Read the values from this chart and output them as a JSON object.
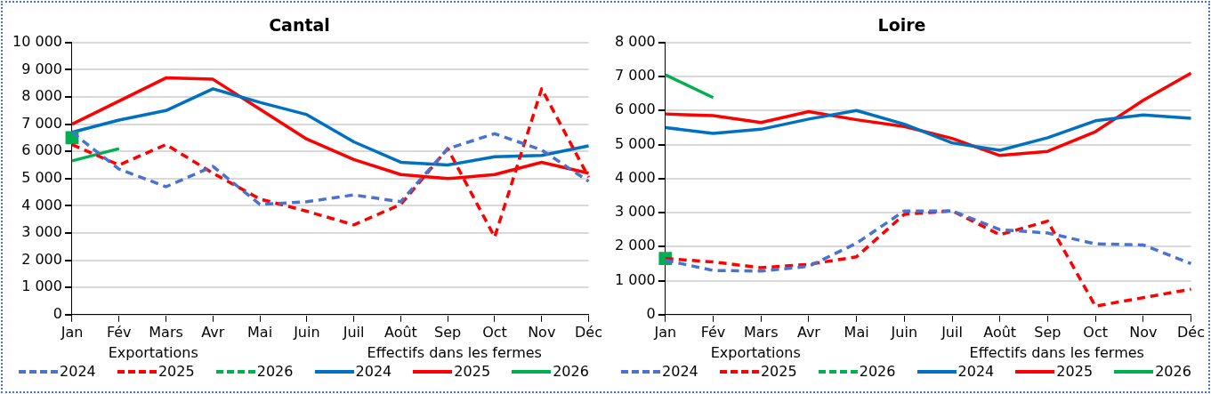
{
  "chart_data": [
    {
      "type": "line",
      "title": "Cantal",
      "categories": [
        "Jan",
        "Fév",
        "Mars",
        "Avr",
        "Mai",
        "Juin",
        "Juil",
        "Août",
        "Sep",
        "Oct",
        "Nov",
        "Déc"
      ],
      "ylim": [
        0,
        10000
      ],
      "yticks": [
        0,
        {
          "value": 1000,
          "label": "1 000"
        },
        {
          "value": 2000,
          "label": "2 000"
        },
        {
          "value": 3000,
          "label": "3 000"
        },
        {
          "value": 4000,
          "label": "4 000"
        },
        {
          "value": 5000,
          "label": "5 000"
        },
        {
          "value": 6000,
          "label": "6 000"
        },
        {
          "value": 7000,
          "label": "7 000"
        },
        {
          "value": 8000,
          "label": "8 000"
        },
        {
          "value": 9000,
          "label": "9 000"
        },
        {
          "value": 10000,
          "label": "10 000"
        }
      ],
      "grid": "y",
      "legend": "bottom",
      "marker": "none",
      "annotations": [
        "Exportations",
        "Effectifs dans les fermes"
      ],
      "series": [
        {
          "name": "2024",
          "color": "#4a72d0",
          "line_style": "dashed",
          "values": [
            6700,
            5350,
            4700,
            5450,
            4050,
            4150,
            4400,
            4150,
            6100,
            6650,
            6050,
            4900
          ]
        },
        {
          "name": "2025",
          "color": "#ff0000",
          "line_style": "dashed",
          "values": [
            6250,
            5500,
            6250,
            5200,
            4250,
            3800,
            3300,
            4050,
            6100,
            2850,
            8300,
            5050
          ]
        },
        {
          "name": "2026",
          "color": "#00b050",
          "line_style": "dashed",
          "marker": "square",
          "values": [
            6500,
            null,
            null,
            null,
            null,
            null,
            null,
            null,
            null,
            null,
            null,
            null
          ]
        },
        {
          "name": "2024",
          "color": "#0070c0",
          "line_style": "solid",
          "values": [
            6700,
            7150,
            7500,
            8300,
            7800,
            7350,
            6350,
            5600,
            5500,
            5800,
            5850,
            6200
          ]
        },
        {
          "name": "2025",
          "color": "#ff0000",
          "line_style": "solid",
          "values": [
            7000,
            7850,
            8700,
            8650,
            7550,
            6450,
            5700,
            5150,
            5000,
            5150,
            5600,
            5200
          ]
        },
        {
          "name": "2026",
          "color": "#00b050",
          "line_style": "solid",
          "values": [
            5650,
            6100,
            null,
            null,
            null,
            null,
            null,
            null,
            null,
            null,
            null,
            null
          ]
        }
      ]
    },
    {
      "type": "line",
      "title": "Loire",
      "categories": [
        "Jan",
        "Fév",
        "Mars",
        "Avr",
        "Mai",
        "Juin",
        "Juil",
        "Août",
        "Sep",
        "Oct",
        "Nov",
        "Déc"
      ],
      "ylim": [
        0,
        8000
      ],
      "yticks": [
        0,
        {
          "value": 1000,
          "label": "1 000"
        },
        {
          "value": 2000,
          "label": "2 000"
        },
        {
          "value": 3000,
          "label": "3 000"
        },
        {
          "value": 4000,
          "label": "4 000"
        },
        {
          "value": 5000,
          "label": "5 000"
        },
        {
          "value": 6000,
          "label": "6 000"
        },
        {
          "value": 7000,
          "label": "7 000"
        },
        {
          "value": 8000,
          "label": "8 000"
        }
      ],
      "grid": "y",
      "legend": "bottom",
      "marker": "none",
      "annotations": [
        "Exportations",
        "Effectifs dans les fermes"
      ],
      "series": [
        {
          "name": "2024",
          "color": "#4a72d0",
          "line_style": "dashed",
          "values": [
            1600,
            1300,
            1280,
            1420,
            2100,
            3050,
            3050,
            2500,
            2400,
            2080,
            2050,
            1500
          ]
        },
        {
          "name": "2025",
          "color": "#ff0000",
          "line_style": "dashed",
          "values": [
            1650,
            1550,
            1380,
            1480,
            1700,
            2950,
            3050,
            2350,
            2750,
            250,
            500,
            750
          ]
        },
        {
          "name": "2026",
          "color": "#00b050",
          "line_style": "dashed",
          "marker": "square",
          "values": [
            1650,
            null,
            null,
            null,
            null,
            null,
            null,
            null,
            null,
            null,
            null,
            null
          ]
        },
        {
          "name": "2024",
          "color": "#0070c0",
          "line_style": "solid",
          "values": [
            5500,
            5330,
            5450,
            5750,
            6000,
            5600,
            5050,
            4830,
            5200,
            5700,
            5870,
            5770
          ]
        },
        {
          "name": "2025",
          "color": "#ff0000",
          "line_style": "solid",
          "values": [
            5900,
            5850,
            5650,
            5970,
            5730,
            5530,
            5180,
            4680,
            4800,
            5380,
            6300,
            7100
          ]
        },
        {
          "name": "2026",
          "color": "#00b050",
          "line_style": "solid",
          "values": [
            7050,
            6380,
            null,
            null,
            null,
            null,
            null,
            null,
            null,
            null,
            null,
            null
          ]
        }
      ]
    }
  ]
}
